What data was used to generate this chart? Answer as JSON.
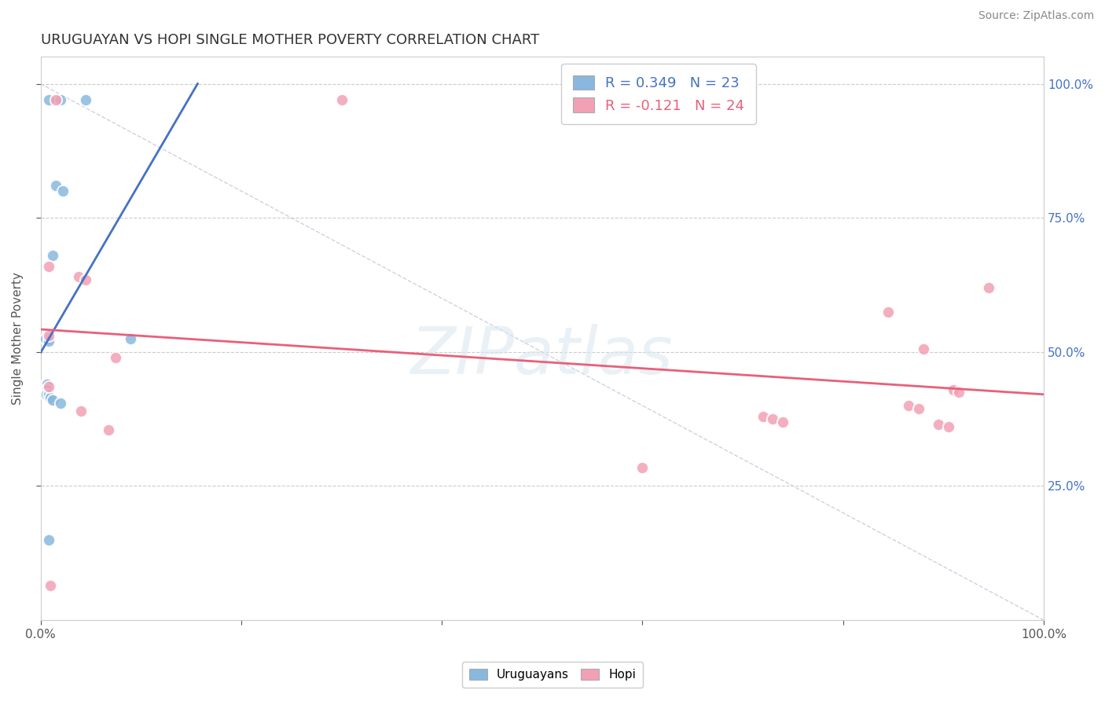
{
  "title": "URUGUAYAN VS HOPI SINGLE MOTHER POVERTY CORRELATION CHART",
  "source": "Source: ZipAtlas.com",
  "ylabel": "Single Mother Poverty",
  "legend_labels": [
    "Uruguayans",
    "Hopi"
  ],
  "r_uruguayan": 0.349,
  "n_uruguayan": 23,
  "r_hopi": -0.121,
  "n_hopi": 24,
  "uruguayan_color": "#89b8de",
  "hopi_color": "#f2a0b5",
  "uruguayan_line_color": "#4472c4",
  "hopi_line_color": "#e8607a",
  "diag_line_color": "#c0c8d8",
  "background_color": "#ffffff",
  "grid_color": "#cccccc",
  "watermark": "ZIPatlas",
  "uruguayan_points": [
    [
      0.008,
      0.97
    ],
    [
      0.02,
      0.97
    ],
    [
      0.045,
      0.97
    ],
    [
      0.015,
      0.81
    ],
    [
      0.022,
      0.8
    ],
    [
      0.012,
      0.68
    ],
    [
      0.005,
      0.525
    ],
    [
      0.008,
      0.525
    ],
    [
      0.008,
      0.52
    ],
    [
      0.09,
      0.525
    ],
    [
      0.005,
      0.44
    ],
    [
      0.006,
      0.44
    ],
    [
      0.007,
      0.44
    ],
    [
      0.005,
      0.43
    ],
    [
      0.006,
      0.43
    ],
    [
      0.007,
      0.43
    ],
    [
      0.005,
      0.42
    ],
    [
      0.006,
      0.42
    ],
    [
      0.008,
      0.42
    ],
    [
      0.01,
      0.415
    ],
    [
      0.012,
      0.41
    ],
    [
      0.02,
      0.405
    ],
    [
      0.008,
      0.15
    ]
  ],
  "hopi_points": [
    [
      0.015,
      0.97
    ],
    [
      0.3,
      0.97
    ],
    [
      0.008,
      0.66
    ],
    [
      0.038,
      0.64
    ],
    [
      0.045,
      0.635
    ],
    [
      0.008,
      0.53
    ],
    [
      0.075,
      0.49
    ],
    [
      0.008,
      0.435
    ],
    [
      0.04,
      0.39
    ],
    [
      0.068,
      0.355
    ],
    [
      0.6,
      0.285
    ],
    [
      0.72,
      0.38
    ],
    [
      0.73,
      0.375
    ],
    [
      0.74,
      0.37
    ],
    [
      0.845,
      0.575
    ],
    [
      0.865,
      0.4
    ],
    [
      0.875,
      0.395
    ],
    [
      0.88,
      0.505
    ],
    [
      0.895,
      0.365
    ],
    [
      0.905,
      0.36
    ],
    [
      0.91,
      0.43
    ],
    [
      0.915,
      0.425
    ],
    [
      0.945,
      0.62
    ],
    [
      0.01,
      0.065
    ]
  ],
  "ylim": [
    0.0,
    1.05
  ],
  "xlim": [
    0.0,
    1.0
  ],
  "ytick_labels": [
    "25.0%",
    "50.0%",
    "75.0%",
    "100.0%"
  ],
  "ytick_values": [
    0.25,
    0.5,
    0.75,
    1.0
  ],
  "xtick_values": [
    0.0,
    0.2,
    0.4,
    0.6,
    0.8,
    1.0
  ],
  "xtick_labels": [
    "0.0%",
    "",
    "",
    "",
    "",
    "100.0%"
  ],
  "marker_size": 120,
  "marker_linewidth": 1.5,
  "line_width": 2.0,
  "title_fontsize": 13,
  "tick_fontsize": 11,
  "legend_fontsize": 13,
  "source_fontsize": 10
}
